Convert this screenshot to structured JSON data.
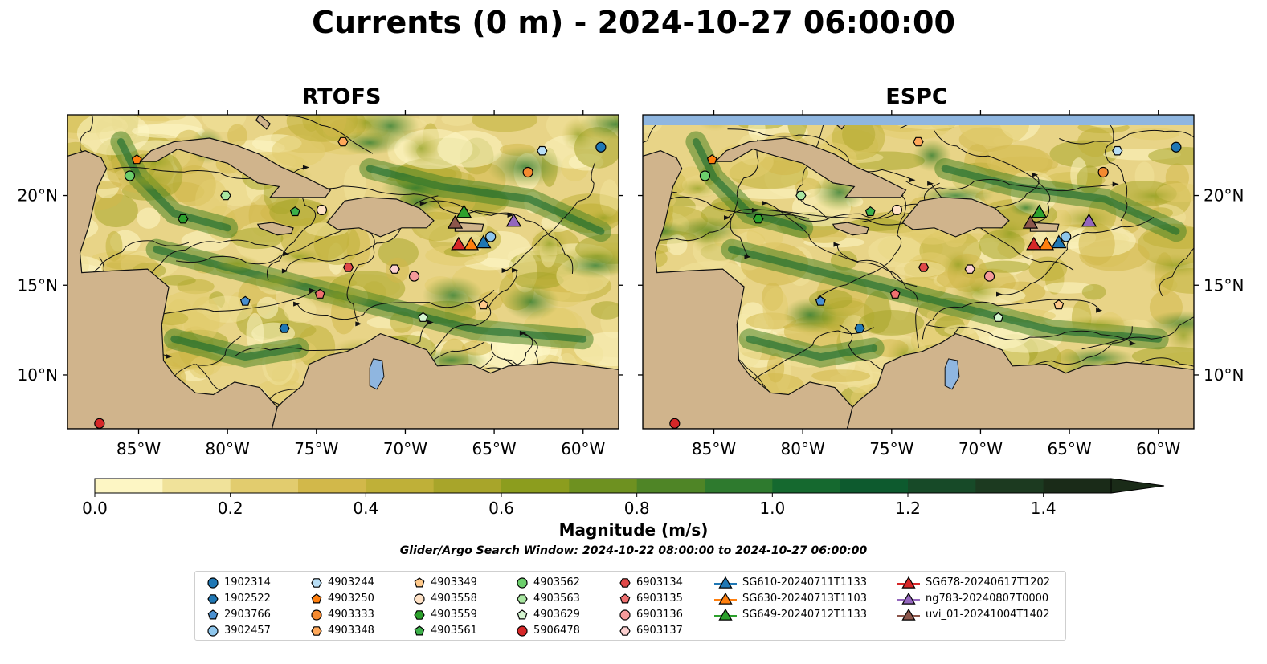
{
  "title": "Currents (0 m) - 2024-10-27 06:00:00",
  "panels": [
    {
      "title": "RTOFS"
    },
    {
      "title": "ESPC"
    }
  ],
  "axes": {
    "lon_ticks": [
      "85°W",
      "80°W",
      "75°W",
      "70°W",
      "65°W",
      "60°W"
    ],
    "lat_ticks": [
      "20°N",
      "15°N",
      "10°N"
    ],
    "lon_range": [
      -89,
      -58
    ],
    "lat_range": [
      7,
      24.5
    ]
  },
  "colorbar": {
    "label": "Magnitude (m/s)",
    "ticks": [
      "0.0",
      "0.2",
      "0.4",
      "0.6",
      "0.8",
      "1.0",
      "1.2",
      "1.4"
    ],
    "range": [
      0,
      1.5
    ],
    "colors": [
      "#fdf6c4",
      "#f0e29a",
      "#e2cc6e",
      "#d2b84a",
      "#bfb038",
      "#a8a52a",
      "#8c9d1e",
      "#6e9120",
      "#4f8526",
      "#2e7a2e",
      "#15692f",
      "#0d5a2e",
      "#174a28",
      "#1c3a20",
      "#1a2b18"
    ]
  },
  "search_window": "Glider/Argo Search Window: 2024-10-22 08:00:00 to 2024-10-27 06:00:00",
  "colors": {
    "land": "#d0b48c",
    "ocean_mask": "#8fb6e0",
    "lake": "#8fb6e0"
  },
  "legend": [
    {
      "label": "1902314",
      "marker": "circle",
      "color": "#1f77b4"
    },
    {
      "label": "1902522",
      "marker": "hexagon",
      "color": "#1f77b4"
    },
    {
      "label": "2903766",
      "marker": "pentagon",
      "color": "#4a90d0"
    },
    {
      "label": "3902457",
      "marker": "circle",
      "color": "#8ec6ec"
    },
    {
      "label": "4903244",
      "marker": "hexagon",
      "color": "#b8def5"
    },
    {
      "label": "4903250",
      "marker": "pentagon",
      "color": "#ff7f0e"
    },
    {
      "label": "4903333",
      "marker": "circle",
      "color": "#f58a30"
    },
    {
      "label": "4903348",
      "marker": "hexagon",
      "color": "#ffa85a"
    },
    {
      "label": "4903349",
      "marker": "pentagon",
      "color": "#ffc98a"
    },
    {
      "label": "4903558",
      "marker": "circle",
      "color": "#ffe2c6"
    },
    {
      "label": "4903559",
      "marker": "hexagon",
      "color": "#2ca02c"
    },
    {
      "label": "4903561",
      "marker": "pentagon",
      "color": "#3cb04a"
    },
    {
      "label": "4903562",
      "marker": "circle",
      "color": "#6ccf6c"
    },
    {
      "label": "4903563",
      "marker": "hexagon",
      "color": "#a8e6a0"
    },
    {
      "label": "4903629",
      "marker": "pentagon",
      "color": "#d4f5d0"
    },
    {
      "label": "5906478",
      "marker": "circle",
      "color": "#d62728"
    },
    {
      "label": "6903134",
      "marker": "hexagon",
      "color": "#e04848"
    },
    {
      "label": "6903135",
      "marker": "pentagon",
      "color": "#f07070"
    },
    {
      "label": "6903136",
      "marker": "circle",
      "color": "#f59a9a"
    },
    {
      "label": "6903137",
      "marker": "hexagon",
      "color": "#fcd0d0"
    },
    {
      "label": "SG610-20240711T1133",
      "marker": "triangle",
      "color": "#1f77b4"
    },
    {
      "label": "SG630-20240713T1103",
      "marker": "triangle",
      "color": "#ff7f0e"
    },
    {
      "label": "SG649-20240712T1133",
      "marker": "triangle",
      "color": "#2ca02c"
    },
    {
      "label": "SG678-20240617T1202",
      "marker": "triangle",
      "color": "#d62728"
    },
    {
      "label": "ng783-20240807T0000",
      "marker": "triangle",
      "color": "#9467bd"
    },
    {
      "label": "uvi_01-20241004T1402",
      "marker": "triangle",
      "color": "#8c564b"
    }
  ],
  "chart_data": {
    "type": "scatter",
    "title": "Currents (0 m) - 2024-10-27 06:00:00",
    "xlabel": "",
    "ylabel": "",
    "xlim": [
      -89,
      -58
    ],
    "ylim": [
      7,
      24.5
    ],
    "series": [
      {
        "name": "1902314",
        "x": -59,
        "y": 22.7
      },
      {
        "name": "1902522",
        "x": -76.8,
        "y": 12.6
      },
      {
        "name": "2903766",
        "x": -79,
        "y": 14.1
      },
      {
        "name": "3902457",
        "x": -65.2,
        "y": 17.7
      },
      {
        "name": "4903244",
        "x": -62.3,
        "y": 22.5
      },
      {
        "name": "4903250",
        "x": -85.1,
        "y": 22.0
      },
      {
        "name": "4903333",
        "x": -63.1,
        "y": 21.3
      },
      {
        "name": "4903348",
        "x": -73.5,
        "y": 23.0
      },
      {
        "name": "4903349",
        "x": -65.6,
        "y": 13.9
      },
      {
        "name": "4903558",
        "x": -74.7,
        "y": 19.2
      },
      {
        "name": "4903559",
        "x": -82.5,
        "y": 18.7
      },
      {
        "name": "4903561",
        "x": -76.2,
        "y": 19.1
      },
      {
        "name": "4903562",
        "x": -85.5,
        "y": 21.1
      },
      {
        "name": "4903563",
        "x": -80.1,
        "y": 20.0
      },
      {
        "name": "4903629",
        "x": -69,
        "y": 13.2
      },
      {
        "name": "5906478",
        "x": -87.2,
        "y": 7.3
      },
      {
        "name": "6903134",
        "x": -73.2,
        "y": 16.0
      },
      {
        "name": "6903135",
        "x": -74.8,
        "y": 14.5
      },
      {
        "name": "6903136",
        "x": -69.5,
        "y": 15.5
      },
      {
        "name": "6903137",
        "x": -70.6,
        "y": 15.9
      },
      {
        "name": "SG610-20240711T1133",
        "x": -65.6,
        "y": 17.4
      },
      {
        "name": "SG630-20240713T1103",
        "x": -66.3,
        "y": 17.3
      },
      {
        "name": "SG649-20240712T1133",
        "x": -66.7,
        "y": 19.1
      },
      {
        "name": "SG678-20240617T1202",
        "x": -67.0,
        "y": 17.3
      },
      {
        "name": "ng783-20240807T0000",
        "x": -63.9,
        "y": 18.6
      },
      {
        "name": "uvi_01-20241004T1402",
        "x": -67.2,
        "y": 18.5
      }
    ]
  }
}
